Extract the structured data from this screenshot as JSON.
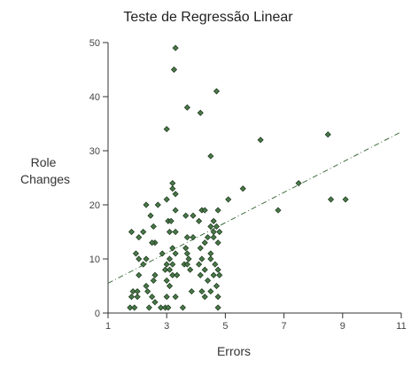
{
  "chart_data": {
    "type": "scatter",
    "title": "Teste de Regressão Linear",
    "xlabel": "Errors",
    "ylabel_lines": [
      "Role",
      "Changes"
    ],
    "xlim": [
      1,
      11
    ],
    "ylim": [
      0,
      50
    ],
    "xticks": [
      1,
      3,
      5,
      7,
      9,
      11
    ],
    "yticks": [
      0,
      10,
      20,
      30,
      40,
      50
    ],
    "grid": false,
    "legend": "none",
    "colors": {
      "point": "#4a7a4a",
      "point_edge": "#1f3a1f",
      "trendline": "#3f6e3f",
      "axis": "#333333"
    },
    "trendline": {
      "style": "dash-dot",
      "x": [
        1,
        11
      ],
      "y": [
        5.5,
        33.5
      ]
    },
    "points": [
      [
        3.3,
        49
      ],
      [
        3.25,
        45
      ],
      [
        4.7,
        41
      ],
      [
        3.7,
        38
      ],
      [
        4.15,
        37
      ],
      [
        3.0,
        34
      ],
      [
        8.5,
        33
      ],
      [
        6.2,
        32
      ],
      [
        4.5,
        29
      ],
      [
        7.5,
        24
      ],
      [
        3.2,
        24
      ],
      [
        3.2,
        23
      ],
      [
        5.6,
        23
      ],
      [
        3.3,
        22
      ],
      [
        5.1,
        21
      ],
      [
        3.0,
        21
      ],
      [
        8.6,
        21
      ],
      [
        9.1,
        21
      ],
      [
        2.3,
        20
      ],
      [
        2.7,
        20
      ],
      [
        6.8,
        19
      ],
      [
        4.2,
        19
      ],
      [
        4.3,
        19
      ],
      [
        4.75,
        19
      ],
      [
        3.3,
        19
      ],
      [
        2.45,
        18
      ],
      [
        3.65,
        18
      ],
      [
        3.9,
        18
      ],
      [
        3.05,
        17
      ],
      [
        3.15,
        17
      ],
      [
        4.1,
        17
      ],
      [
        4.6,
        17
      ],
      [
        2.55,
        16
      ],
      [
        4.5,
        16
      ],
      [
        4.7,
        16
      ],
      [
        1.8,
        15
      ],
      [
        2.2,
        15
      ],
      [
        3.1,
        15
      ],
      [
        3.3,
        15
      ],
      [
        4.6,
        15
      ],
      [
        4.8,
        15
      ],
      [
        2.05,
        14
      ],
      [
        3.7,
        14
      ],
      [
        3.9,
        14
      ],
      [
        4.4,
        14
      ],
      [
        4.6,
        14
      ],
      [
        2.6,
        13
      ],
      [
        2.5,
        13
      ],
      [
        4.3,
        13
      ],
      [
        4.75,
        13
      ],
      [
        3.2,
        12
      ],
      [
        3.65,
        12
      ],
      [
        4.15,
        12
      ],
      [
        1.95,
        11
      ],
      [
        2.85,
        11
      ],
      [
        3.3,
        11
      ],
      [
        3.7,
        11
      ],
      [
        4.5,
        11
      ],
      [
        2.05,
        10
      ],
      [
        2.3,
        10
      ],
      [
        3.1,
        10
      ],
      [
        3.75,
        10
      ],
      [
        4.2,
        10
      ],
      [
        4.5,
        10
      ],
      [
        2.2,
        9
      ],
      [
        3.0,
        9
      ],
      [
        3.2,
        9
      ],
      [
        3.6,
        9
      ],
      [
        3.7,
        9
      ],
      [
        4.1,
        9
      ],
      [
        4.65,
        9
      ],
      [
        2.95,
        8
      ],
      [
        3.1,
        8
      ],
      [
        3.8,
        8
      ],
      [
        4.3,
        8
      ],
      [
        4.75,
        8
      ],
      [
        2.05,
        7
      ],
      [
        2.6,
        7
      ],
      [
        3.2,
        7
      ],
      [
        3.35,
        7
      ],
      [
        4.15,
        7
      ],
      [
        4.6,
        7
      ],
      [
        4.8,
        7
      ],
      [
        2.55,
        6
      ],
      [
        3.0,
        6
      ],
      [
        4.4,
        6
      ],
      [
        2.3,
        5
      ],
      [
        3.1,
        5
      ],
      [
        4.7,
        5
      ],
      [
        1.85,
        4
      ],
      [
        2.0,
        4
      ],
      [
        2.35,
        4
      ],
      [
        3.85,
        4
      ],
      [
        4.2,
        4
      ],
      [
        4.5,
        4
      ],
      [
        1.8,
        3
      ],
      [
        2.0,
        3
      ],
      [
        2.5,
        3
      ],
      [
        3.0,
        3
      ],
      [
        3.3,
        3
      ],
      [
        4.3,
        3
      ],
      [
        4.75,
        3
      ],
      [
        2.6,
        2
      ],
      [
        1.75,
        1
      ],
      [
        1.9,
        1
      ],
      [
        2.4,
        1
      ],
      [
        2.8,
        1
      ],
      [
        2.95,
        1
      ],
      [
        3.05,
        1
      ],
      [
        3.55,
        1
      ],
      [
        4.75,
        1
      ]
    ]
  }
}
